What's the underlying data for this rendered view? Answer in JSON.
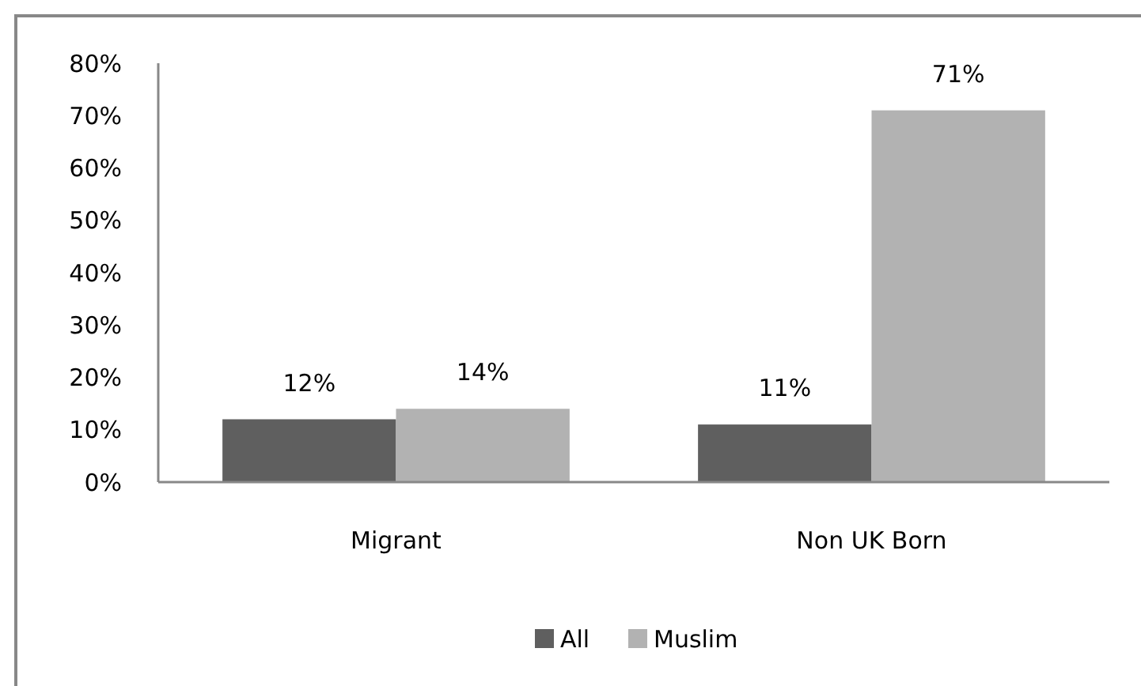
{
  "chart_data": {
    "type": "bar",
    "categories": [
      "Migrant",
      "Non UK Born"
    ],
    "series": [
      {
        "name": "All",
        "color": "#5f5f5f",
        "values": [
          12,
          11
        ],
        "value_labels": [
          "12%",
          "11%"
        ]
      },
      {
        "name": "Muslim",
        "color": "#b2b2b2",
        "values": [
          14,
          71
        ],
        "value_labels": [
          "14%",
          "71%"
        ]
      }
    ],
    "ylim": [
      0,
      80
    ],
    "yticks": [
      {
        "value": 0,
        "label": "0%"
      },
      {
        "value": 10,
        "label": "10%"
      },
      {
        "value": 20,
        "label": "20%"
      },
      {
        "value": 30,
        "label": "30%"
      },
      {
        "value": 40,
        "label": "40%"
      },
      {
        "value": 50,
        "label": "50%"
      },
      {
        "value": 60,
        "label": "60%"
      },
      {
        "value": 70,
        "label": "70%"
      },
      {
        "value": 80,
        "label": "80%"
      }
    ],
    "grid": false,
    "legend": "bottom"
  }
}
